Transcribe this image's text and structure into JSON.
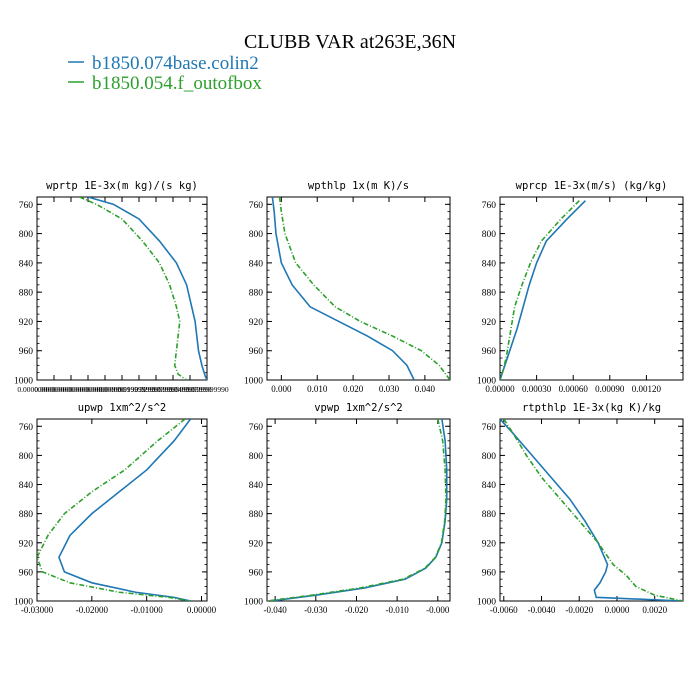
{
  "figure": {
    "title": "CLUBB VAR at263E,36N",
    "legend": [
      {
        "label": "b1850.074base.colin2",
        "color": "#1f77b4"
      },
      {
        "label": "b1850.054.f_outofbox",
        "color": "#2ca02c"
      }
    ]
  },
  "chart_data": [
    {
      "type": "line",
      "title": "wprtp  1E-3x(m kg)/(s kg)",
      "yinvert": true,
      "ylim": [
        1000,
        750
      ],
      "yticks": [
        760,
        800,
        840,
        880,
        920,
        960,
        1000
      ],
      "ytick_labels": [
        "760",
        "800",
        "840",
        "880",
        "920",
        "960",
        "1000"
      ],
      "xlim": [
        0.0,
        1.0
      ],
      "xticks": [
        0.0,
        0.1,
        0.2,
        0.3,
        0.4,
        0.5,
        0.6,
        0.7,
        0.8,
        0.9,
        1.0
      ],
      "xtick_labels": [
        "0.000000000",
        "0.000000000",
        "0.000000000",
        "0.000000000",
        "0.000000000",
        "0.00999999999",
        "0.0199999990",
        "0.0299999990",
        "0.0399999990",
        "0.0499999990",
        "0.0599999990"
      ],
      "series": [
        {
          "name": "b1850.074base.colin2",
          "color": "#1f77b4",
          "dashed": false,
          "x": [
            0.3,
            0.45,
            0.6,
            0.72,
            0.82,
            0.88,
            0.91,
            0.93,
            0.94,
            0.95,
            0.97,
            0.99,
            1.0
          ],
          "y": [
            750,
            760,
            780,
            810,
            840,
            870,
            900,
            920,
            940,
            960,
            980,
            995,
            1000
          ]
        },
        {
          "name": "b1850.054.f_outofbox",
          "color": "#2ca02c",
          "dashed": true,
          "x": [
            0.25,
            0.35,
            0.5,
            0.62,
            0.72,
            0.78,
            0.82,
            0.84,
            0.83,
            0.82,
            0.81,
            0.83,
            0.88
          ],
          "y": [
            750,
            760,
            780,
            810,
            840,
            870,
            900,
            920,
            940,
            960,
            980,
            992,
            1000
          ]
        }
      ]
    },
    {
      "type": "line",
      "title": "wpthlp  1x(m K)/s",
      "yinvert": true,
      "ylim": [
        1000,
        750
      ],
      "yticks": [
        760,
        800,
        840,
        880,
        920,
        960,
        1000
      ],
      "ytick_labels": [
        "760",
        "800",
        "840",
        "880",
        "920",
        "960",
        "1000"
      ],
      "xlim": [
        -0.004,
        0.047
      ],
      "xticks": [
        0.0,
        0.01,
        0.02,
        0.03,
        0.04
      ],
      "xtick_labels": [
        "0.000",
        "0.010",
        "0.020",
        "0.030",
        "0.040"
      ],
      "series": [
        {
          "name": "b1850.074base.colin2",
          "color": "#1f77b4",
          "dashed": false,
          "x": [
            -0.0025,
            -0.002,
            -0.0015,
            0.0,
            0.003,
            0.008,
            0.016,
            0.024,
            0.031,
            0.035,
            0.037
          ],
          "y": [
            750,
            770,
            800,
            840,
            870,
            900,
            920,
            940,
            960,
            980,
            1000
          ]
        },
        {
          "name": "b1850.054.f_outofbox",
          "color": "#2ca02c",
          "dashed": true,
          "x": [
            -0.0005,
            0.0,
            0.001,
            0.004,
            0.009,
            0.015,
            0.022,
            0.031,
            0.039,
            0.044,
            0.047
          ],
          "y": [
            750,
            770,
            800,
            840,
            870,
            900,
            920,
            940,
            960,
            980,
            1000
          ]
        }
      ]
    },
    {
      "type": "line",
      "title": "wprcp  1E-3x(m/s) (kg/kg)",
      "yinvert": true,
      "ylim": [
        1000,
        750
      ],
      "yticks": [
        760,
        800,
        840,
        880,
        920,
        960,
        1000
      ],
      "ytick_labels": [
        "760",
        "800",
        "840",
        "880",
        "920",
        "960",
        "1000"
      ],
      "xlim": [
        0.0,
        0.0015
      ],
      "xticks": [
        0.0,
        0.0003,
        0.0006,
        0.0009,
        0.0012
      ],
      "xtick_labels": [
        "0.00000",
        "0.00030",
        "0.00060",
        "0.00090",
        "0.00120"
      ],
      "series": [
        {
          "name": "b1850.074base.colin2",
          "color": "#1f77b4",
          "dashed": false,
          "x": [
            0.0007,
            0.00055,
            0.00038,
            0.0003,
            0.00024,
            0.00019,
            0.00014,
            0.0001,
            6e-05,
            2e-05,
            0.0
          ],
          "y": [
            755,
            780,
            810,
            840,
            870,
            900,
            930,
            950,
            970,
            990,
            1000
          ]
        },
        {
          "name": "b1850.054.f_outofbox",
          "color": "#2ca02c",
          "dashed": true,
          "x": [
            0.00065,
            0.0005,
            0.00034,
            0.00025,
            0.00018,
            0.00012,
            9e-05,
            7e-05,
            5e-05,
            2e-05,
            0.0
          ],
          "y": [
            755,
            780,
            810,
            840,
            870,
            900,
            930,
            950,
            970,
            990,
            1000
          ]
        }
      ]
    },
    {
      "type": "line",
      "title": "upwp  1xm^2/s^2",
      "yinvert": true,
      "ylim": [
        1000,
        750
      ],
      "yticks": [
        760,
        800,
        840,
        880,
        920,
        960,
        1000
      ],
      "ytick_labels": [
        "760",
        "800",
        "840",
        "880",
        "920",
        "960",
        "1000"
      ],
      "xlim": [
        -0.03,
        0.001
      ],
      "xticks": [
        -0.03,
        -0.02,
        -0.01,
        0.0
      ],
      "xtick_labels": [
        "-0.03000",
        "-0.02000",
        "-0.01000",
        "0.00000"
      ],
      "series": [
        {
          "name": "b1850.074base.colin2",
          "color": "#1f77b4",
          "dashed": false,
          "x": [
            -0.002,
            -0.005,
            -0.01,
            -0.015,
            -0.02,
            -0.024,
            -0.026,
            -0.025,
            -0.02,
            -0.012,
            -0.005,
            -0.002
          ],
          "y": [
            750,
            780,
            820,
            850,
            880,
            910,
            940,
            960,
            975,
            988,
            995,
            1000
          ]
        },
        {
          "name": "b1850.054.f_outofbox",
          "color": "#2ca02c",
          "dashed": true,
          "x": [
            -0.003,
            -0.008,
            -0.014,
            -0.02,
            -0.025,
            -0.028,
            -0.03,
            -0.029,
            -0.024,
            -0.015,
            -0.006,
            -0.002
          ],
          "y": [
            750,
            780,
            820,
            850,
            880,
            910,
            940,
            960,
            975,
            988,
            995,
            1000
          ]
        }
      ]
    },
    {
      "type": "line",
      "title": "vpwp  1xm^2/s^2",
      "yinvert": true,
      "ylim": [
        1000,
        750
      ],
      "yticks": [
        760,
        800,
        840,
        880,
        920,
        960,
        1000
      ],
      "ytick_labels": [
        "760",
        "800",
        "840",
        "880",
        "920",
        "960",
        "1000"
      ],
      "xlim": [
        -0.042,
        0.003
      ],
      "xticks": [
        -0.04,
        -0.03,
        -0.02,
        -0.01,
        0.0
      ],
      "xtick_labels": [
        "-0.040",
        "-0.030",
        "-0.020",
        "-0.010",
        "-0.000"
      ],
      "series": [
        {
          "name": "b1850.074base.colin2",
          "color": "#1f77b4",
          "dashed": false,
          "x": [
            0.001,
            0.0018,
            0.0022,
            0.0022,
            0.0018,
            0.001,
            -0.0005,
            -0.003,
            -0.008,
            -0.018,
            -0.03,
            -0.041
          ],
          "y": [
            750,
            780,
            820,
            860,
            890,
            920,
            940,
            955,
            970,
            982,
            992,
            1000
          ]
        },
        {
          "name": "b1850.054.f_outofbox",
          "color": "#2ca02c",
          "dashed": true,
          "x": [
            0.0,
            0.0012,
            0.0018,
            0.002,
            0.0017,
            0.0009,
            -0.0006,
            -0.0032,
            -0.0085,
            -0.019,
            -0.031,
            -0.042
          ],
          "y": [
            750,
            780,
            820,
            860,
            890,
            920,
            940,
            955,
            970,
            982,
            992,
            1000
          ]
        }
      ]
    },
    {
      "type": "line",
      "title": "rtpthlp  1E-3x(kg K)/kg",
      "yinvert": true,
      "ylim": [
        1000,
        750
      ],
      "yticks": [
        760,
        800,
        840,
        880,
        920,
        960,
        1000
      ],
      "ytick_labels": [
        "760",
        "800",
        "840",
        "880",
        "920",
        "960",
        "1000"
      ],
      "xlim": [
        -0.0062,
        0.0035
      ],
      "xticks": [
        -0.006,
        -0.004,
        -0.002,
        0.0,
        0.002
      ],
      "xtick_labels": [
        "-0.0060",
        "-0.0040",
        "-0.0020",
        "0.0000",
        "0.0020"
      ],
      "series": [
        {
          "name": "b1850.074base.colin2",
          "color": "#1f77b4",
          "dashed": false,
          "x": [
            -0.0062,
            -0.0055,
            -0.0045,
            -0.0035,
            -0.0025,
            -0.0017,
            -0.001,
            -0.0005,
            -0.0006,
            -0.0009,
            -0.0012,
            -0.0011,
            0.0035
          ],
          "y": [
            750,
            770,
            800,
            830,
            860,
            890,
            920,
            950,
            960,
            975,
            985,
            995,
            1000
          ]
        },
        {
          "name": "b1850.054.f_outofbox",
          "color": "#2ca02c",
          "dashed": true,
          "x": [
            -0.006,
            -0.0055,
            -0.0048,
            -0.004,
            -0.003,
            -0.002,
            -0.001,
            -0.0002,
            0.0005,
            0.001,
            0.002,
            0.0035
          ],
          "y": [
            750,
            770,
            800,
            830,
            860,
            890,
            920,
            950,
            965,
            980,
            992,
            1000
          ]
        }
      ]
    }
  ]
}
